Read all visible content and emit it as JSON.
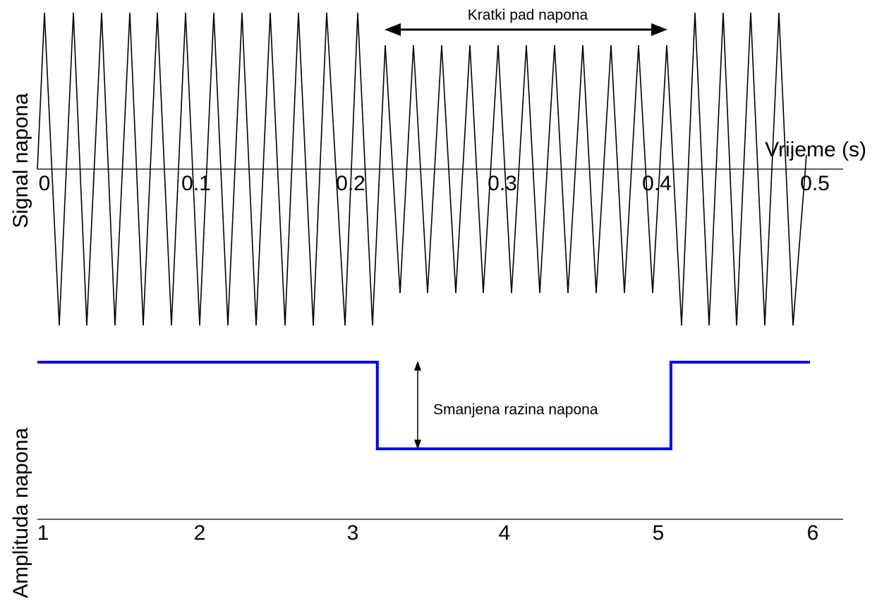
{
  "top_panel": {
    "ylabel": "Signal napona",
    "xlabel": "Vrijeme (s)",
    "tick_labels": [
      "0",
      "0.1",
      "0.2",
      "0.3",
      "0.4",
      "0.5"
    ],
    "annotation": "Kratki pad napona"
  },
  "bottom_panel": {
    "ylabel": "Amplituda napona",
    "tick_labels": [
      "1",
      "2",
      "3",
      "4",
      "5",
      "6"
    ],
    "annotation": "Smanjena razina napona",
    "line_color": "#0000ff"
  },
  "chart_data": [
    {
      "type": "line",
      "ylabel": "Signal napona",
      "xlabel": "Vrijeme (s)",
      "x_ticks": [
        0,
        0.1,
        0.2,
        0.3,
        0.4,
        0.5
      ],
      "series": [
        {
          "shape": "triangle-wave",
          "segments": [
            {
              "x_start": 0,
              "x_end": 0.218,
              "relative_amplitude": 1.0
            },
            {
              "x_start": 0.218,
              "x_end": 0.41,
              "relative_amplitude": 0.78
            },
            {
              "x_start": 0.41,
              "x_end": 0.5,
              "relative_amplitude": 1.0
            }
          ]
        }
      ],
      "annotation": "Kratki pad napona"
    },
    {
      "type": "line",
      "ylabel": "Amplituda napona",
      "x_ticks": [
        1,
        2,
        3,
        4,
        5,
        6
      ],
      "xlim": [
        1,
        6
      ],
      "series": [
        {
          "color": "#0000ff",
          "x": [
            1,
            3.2,
            3.2,
            5.1,
            5.1,
            6
          ],
          "y": [
            1.0,
            1.0,
            0.55,
            0.55,
            1.0,
            1.0
          ]
        }
      ],
      "annotation": "Smanjena razina napona"
    }
  ]
}
